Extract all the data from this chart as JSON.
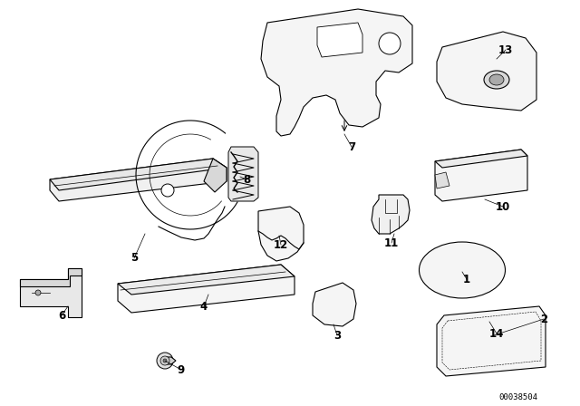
{
  "background_color": "#ffffff",
  "line_color": "#000000",
  "figure_id": "00038504",
  "fig_width": 6.4,
  "fig_height": 4.48,
  "dpi": 100
}
